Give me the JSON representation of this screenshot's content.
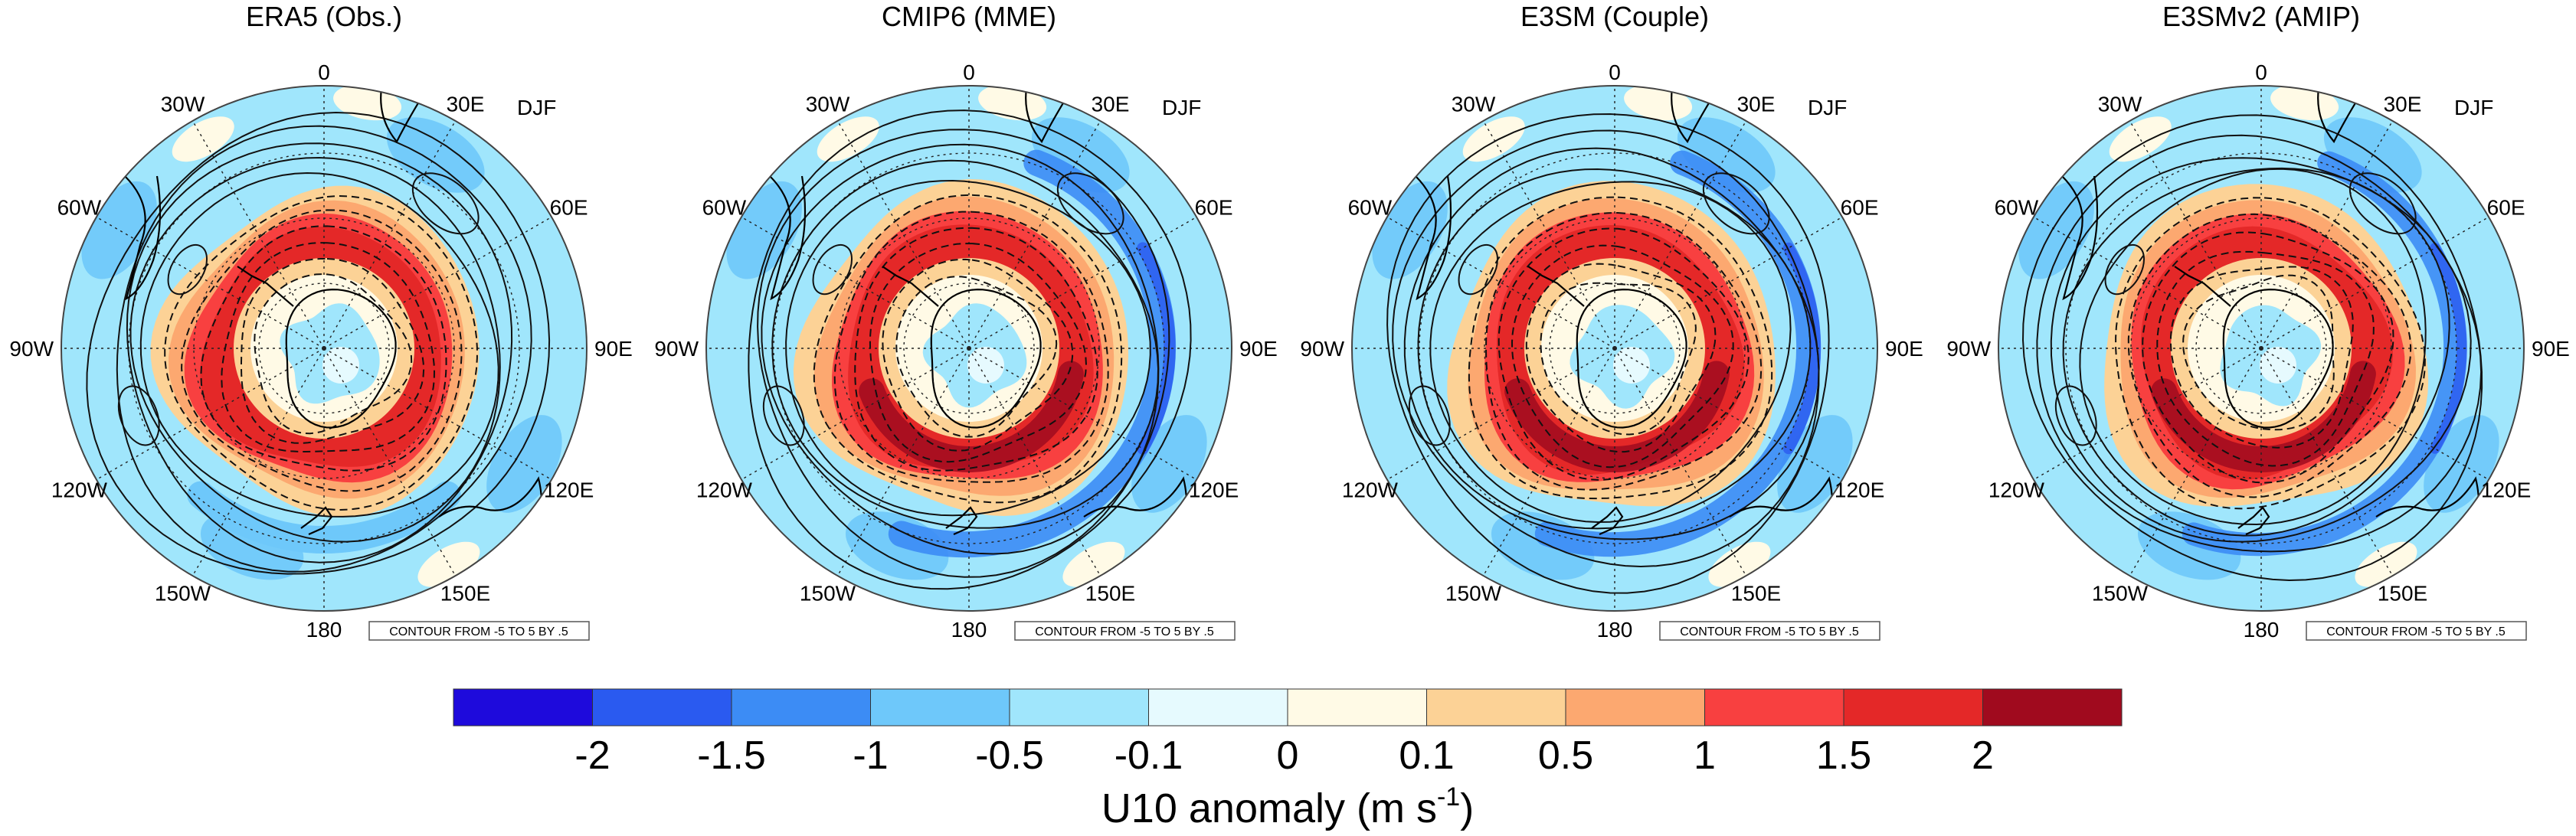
{
  "figure": {
    "season": "DJF",
    "contour_note": "CONTOUR FROM -5 TO 5 BY .5",
    "panels": [
      {
        "title": "ERA5 (Obs.)",
        "band_strength": 0.75,
        "outer_ring_strength": 0.35
      },
      {
        "title": "CMIP6 (MME)",
        "band_strength": 1.0,
        "outer_ring_strength": 0.85
      },
      {
        "title": "E3SM (Couple)",
        "band_strength": 1.0,
        "outer_ring_strength": 0.8
      },
      {
        "title": "E3SMv2 (AMIP)",
        "band_strength": 0.95,
        "outer_ring_strength": 0.75
      }
    ],
    "longitude_labels": [
      "0",
      "30E",
      "60E",
      "90E",
      "120E",
      "150E",
      "180",
      "150W",
      "120W",
      "90W",
      "60W",
      "30W"
    ],
    "colorbar": {
      "ticks": [
        "-2",
        "-1.5",
        "-1",
        "-0.5",
        "-0.1",
        "0",
        "0.1",
        "0.5",
        "1",
        "1.5",
        "2"
      ],
      "colors": [
        "#1e0adc",
        "#2a5af0",
        "#3c8cf5",
        "#6ec8fa",
        "#a0e6fc",
        "#e6fafe",
        "#fffae6",
        "#fcd296",
        "#fca870",
        "#f84040",
        "#e42828",
        "#a00a1e"
      ],
      "label_main": "U10 anomaly (m s",
      "label_sup": "-1",
      "label_end": ")"
    }
  }
}
